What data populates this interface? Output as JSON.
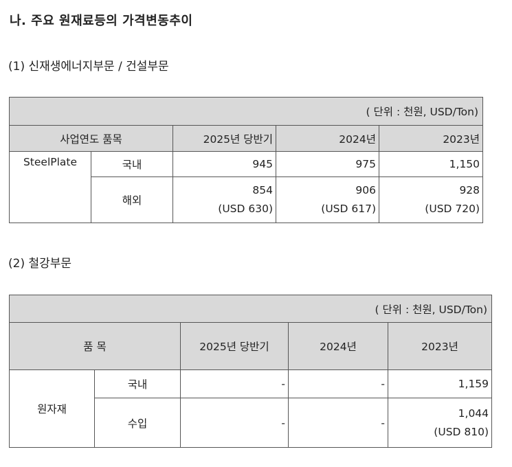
{
  "heading": "나. 주요 원재료등의 가격변동추이",
  "section1": {
    "title": "(1) 신재생에너지부문 / 건설부문",
    "unit": "( 단위 : 천원, USD/Ton)",
    "headers": {
      "item": "사업연도 품목",
      "col2025": "2025년 당반기",
      "col2024": "2024년",
      "col2023": "2023년"
    },
    "product": "SteelPlate",
    "rows": [
      {
        "label": "국내",
        "v2025": "945",
        "v2024": "975",
        "v2023": "1,150"
      },
      {
        "label": "해외",
        "v2025": "854",
        "v2025_sub": "(USD 630)",
        "v2024": "906",
        "v2024_sub": "(USD 617)",
        "v2023": "928",
        "v2023_sub": "(USD 720)"
      }
    ]
  },
  "section2": {
    "title": "(2) 철강부문",
    "unit": "( 단위 : 천원, USD/Ton)",
    "headers": {
      "item": "품 목",
      "col2025": "2025년 당반기",
      "col2024": "2024년",
      "col2023": "2023년"
    },
    "product": "원자재",
    "rows": [
      {
        "label": "국내",
        "v2025": "-",
        "v2024": "-",
        "v2023": "1,159"
      },
      {
        "label": "수입",
        "v2025": "-",
        "v2024": "-",
        "v2023": "1,044",
        "v2023_sub": "(USD 810)"
      }
    ]
  }
}
